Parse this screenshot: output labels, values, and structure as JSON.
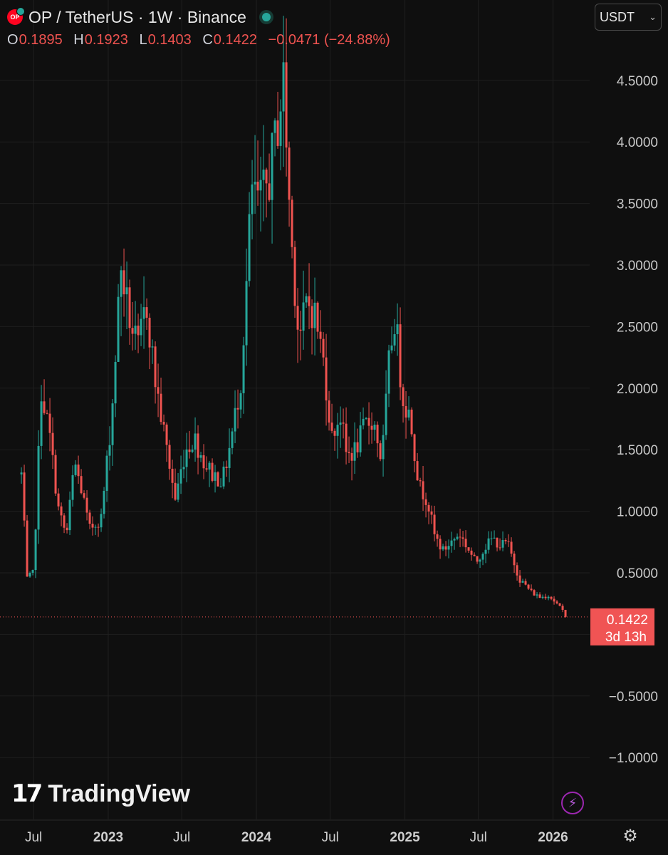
{
  "header": {
    "symbol_title": "OP / TetherUS · 1W · Binance",
    "logo_text": "OP",
    "ohlc": {
      "o_label": "O",
      "o": "0.1895",
      "h_label": "H",
      "h": "0.1923",
      "l_label": "L",
      "l": "0.1403",
      "c_label": "C",
      "c": "0.1422",
      "change": "−0.0471 (−24.88%)"
    }
  },
  "currency_select": {
    "value": "USDT"
  },
  "branding": {
    "name": "TradingView"
  },
  "price_tag": {
    "price": "0.1422",
    "countdown": "3d 13h",
    "color": "#f05454"
  },
  "colors": {
    "up": "#26a69a",
    "down": "#ef5350",
    "background": "#0f0f0f",
    "grid": "#1f1f1f"
  },
  "icons": {
    "logo": "optimism-logo-icon",
    "live": "market-open-dot-icon",
    "bolt": "lightning-icon",
    "settings": "gear-icon"
  },
  "chart_data": {
    "type": "candlestick",
    "title": "OP / TetherUS · 1W · Binance",
    "ylim": [
      -1.1,
      4.9
    ],
    "y_ticks": [
      4.5,
      4.0,
      3.5,
      3.0,
      2.5,
      2.0,
      1.5,
      1.0,
      0.5,
      -0.5,
      -1.0
    ],
    "y_tick_labels": [
      "4.5000",
      "4.0000",
      "3.5000",
      "3.0000",
      "2.5000",
      "2.0000",
      "1.5000",
      "1.0000",
      "0.5000",
      "−0.5000",
      "−1.0000"
    ],
    "x_ticks": [
      "2022-07",
      "2023-01",
      "2023-07",
      "2024-01",
      "2024-07",
      "2025-01",
      "2025-07",
      "2026-01"
    ],
    "x_tick_labels": [
      "Jul",
      "2023",
      "Jul",
      "2024",
      "Jul",
      "2025",
      "Jul",
      "2026"
    ],
    "x_tick_bold": [
      false,
      true,
      false,
      true,
      false,
      true,
      false,
      true
    ],
    "last_price": 0.1422,
    "grid": true,
    "series_points": [
      [
        "2022-06-01",
        1.3
      ],
      [
        "2022-06-15",
        0.45
      ],
      [
        "2022-07-01",
        0.5
      ],
      [
        "2022-07-20",
        2.0
      ],
      [
        "2022-08-10",
        1.6
      ],
      [
        "2022-09-01",
        1.0
      ],
      [
        "2022-09-20",
        0.8
      ],
      [
        "2022-10-10",
        1.4
      ],
      [
        "2022-11-01",
        1.1
      ],
      [
        "2022-11-15",
        0.85
      ],
      [
        "2022-12-15",
        0.95
      ],
      [
        "2023-01-10",
        1.8
      ],
      [
        "2023-02-01",
        3.0
      ],
      [
        "2023-02-20",
        2.6
      ],
      [
        "2023-03-15",
        2.3
      ],
      [
        "2023-04-05",
        2.7
      ],
      [
        "2023-04-25",
        2.1
      ],
      [
        "2023-05-20",
        1.6
      ],
      [
        "2023-06-15",
        1.1
      ],
      [
        "2023-07-10",
        1.5
      ],
      [
        "2023-08-01",
        1.6
      ],
      [
        "2023-08-25",
        1.4
      ],
      [
        "2023-09-15",
        1.3
      ],
      [
        "2023-10-10",
        1.25
      ],
      [
        "2023-11-01",
        1.6
      ],
      [
        "2023-11-25",
        2.1
      ],
      [
        "2023-12-20",
        3.6
      ],
      [
        "2024-01-10",
        3.5
      ],
      [
        "2024-02-01",
        3.7
      ],
      [
        "2024-02-20",
        4.1
      ],
      [
        "2024-03-08",
        4.5
      ],
      [
        "2024-03-25",
        3.3
      ],
      [
        "2024-04-15",
        2.4
      ],
      [
        "2024-05-05",
        2.7
      ],
      [
        "2024-05-25",
        2.6
      ],
      [
        "2024-06-15",
        2.2
      ],
      [
        "2024-07-05",
        1.6
      ],
      [
        "2024-07-25",
        1.8
      ],
      [
        "2024-08-10",
        1.45
      ],
      [
        "2024-09-01",
        1.5
      ],
      [
        "2024-09-25",
        1.7
      ],
      [
        "2024-10-15",
        1.75
      ],
      [
        "2024-11-05",
        1.4
      ],
      [
        "2024-11-25",
        2.3
      ],
      [
        "2024-12-08",
        2.6
      ],
      [
        "2024-12-25",
        1.95
      ],
      [
        "2025-01-15",
        1.75
      ],
      [
        "2025-02-05",
        1.2
      ],
      [
        "2025-02-25",
        1.1
      ],
      [
        "2025-03-15",
        0.8
      ],
      [
        "2025-04-05",
        0.68
      ],
      [
        "2025-04-25",
        0.75
      ],
      [
        "2025-05-15",
        0.82
      ],
      [
        "2025-06-05",
        0.7
      ],
      [
        "2025-06-25",
        0.58
      ],
      [
        "2025-07-15",
        0.7
      ],
      [
        "2025-08-05",
        0.78
      ],
      [
        "2025-08-25",
        0.72
      ],
      [
        "2025-09-10",
        0.75
      ],
      [
        "2025-09-25",
        0.6
      ],
      [
        "2025-10-10",
        0.45
      ],
      [
        "2025-10-25",
        0.4
      ],
      [
        "2025-11-10",
        0.34
      ],
      [
        "2025-12-01",
        0.3
      ],
      [
        "2025-12-20",
        0.32
      ],
      [
        "2026-01-10",
        0.25
      ],
      [
        "2026-01-25",
        0.19
      ],
      [
        "2026-02-05",
        0.1422
      ]
    ]
  }
}
